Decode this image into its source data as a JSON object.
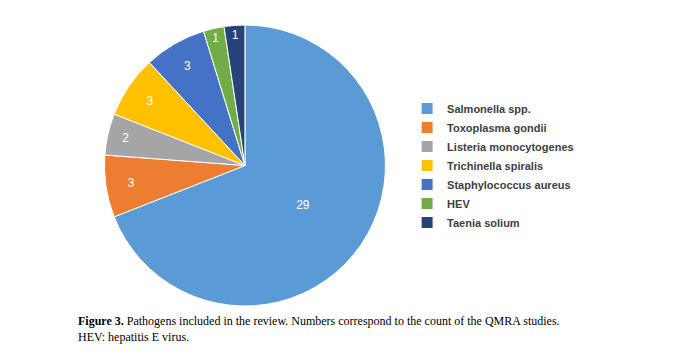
{
  "chart_data": {
    "type": "pie",
    "categories": [
      "Salmonella spp.",
      "Toxoplasma gondii",
      "Listeria monocytogenes",
      "Trichinella spiralis",
      "Staphylococcus aureus",
      "HEV",
      "Taenia solium"
    ],
    "values": [
      29,
      3,
      2,
      3,
      3,
      1,
      1
    ],
    "colors": [
      "#5b9bd5",
      "#ed7d31",
      "#a5a5a5",
      "#ffc000",
      "#4472c4",
      "#70ad47",
      "#264478"
    ],
    "data_labels": true,
    "legend": "right",
    "annotations": [
      "Figure 3. Pathogens included in the review. Numbers correspond to the count of the QMRA studies.",
      "HEV: hepatitis E virus."
    ]
  }
}
